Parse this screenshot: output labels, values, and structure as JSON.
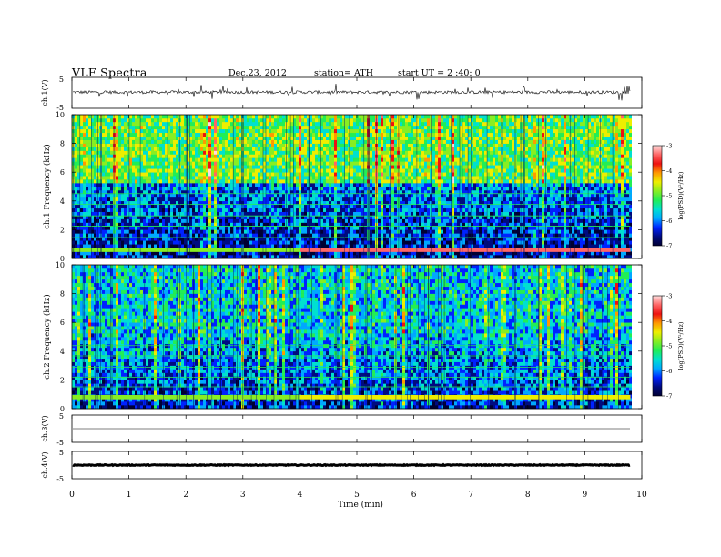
{
  "header": {
    "title": "VLF  Spectra",
    "date": "Dec.23, 2012",
    "station": "station= ATH",
    "start": "start  UT  =  2 :40: 0"
  },
  "colors": {
    "colormap": [
      "#000033",
      "#000b80",
      "#0022ff",
      "#00a8ff",
      "#00e0d0",
      "#22ee55",
      "#88ee22",
      "#eeee00",
      "#ff9900",
      "#ee1111",
      "#ff6666",
      "#ffdddd"
    ]
  },
  "chart_data": {
    "type": "heatmap",
    "x_axis": {
      "label": "Time  (min)",
      "range": [
        0,
        10
      ],
      "ticks": [
        "0",
        "1",
        "2",
        "3",
        "4",
        "5",
        "6",
        "7",
        "8",
        "9",
        "10"
      ]
    },
    "data_end_min": 9.8,
    "panels": [
      {
        "id": "ch1-waveform",
        "type": "line",
        "ylabel": "ch.1(V)",
        "yticks": [
          "5",
          "-5"
        ],
        "ylim": [
          -5,
          5
        ],
        "baseline": 0.2,
        "noise_amplitude": 0.5
      },
      {
        "id": "ch1-spectrogram",
        "type": "heatmap",
        "ylabel": "ch.1  Frequency  (kHz)",
        "yticks": [
          "10",
          "8",
          "6",
          "4",
          "2",
          "0"
        ],
        "ylim": [
          0,
          10
        ],
        "colorbar": {
          "label": "log(PSD)(V²/Hz)",
          "ticks": [
            "-3",
            "-4",
            "-5",
            "-6",
            "-7"
          ],
          "range": [
            -7,
            -3
          ]
        },
        "band_features": {
          "high_band_level": -5.0,
          "low_band_level": -6.5,
          "power_line_band_khz": 0.5,
          "power_line_level_after_min_4": -3.5
        }
      },
      {
        "id": "ch2-spectrogram",
        "type": "heatmap",
        "ylabel": "ch.2  Frequency  (kHz)",
        "yticks": [
          "10",
          "8",
          "6",
          "4",
          "2",
          "0"
        ],
        "ylim": [
          0,
          10
        ],
        "colorbar": {
          "label": "log(PSD)(V²/Hz)",
          "ticks": [
            "-3",
            "-4",
            "-5",
            "-6",
            "-7"
          ],
          "range": [
            -7,
            -3
          ]
        },
        "band_features": {
          "high_band_level": -5.6,
          "low_band_level": -6.3,
          "power_line_band_khz": 0.7,
          "power_line_level_after_min_4": -4.5
        }
      },
      {
        "id": "ch3-waveform",
        "type": "line",
        "ylabel": "ch.3(V)",
        "yticks": [
          "5",
          "-5"
        ],
        "ylim": [
          -5,
          5
        ],
        "baseline": 0.0,
        "noise_amplitude": 0.0
      },
      {
        "id": "ch4-waveform",
        "type": "line",
        "ylabel": "ch.4(V)",
        "yticks": [
          "5",
          "-5"
        ],
        "ylim": [
          -5,
          5
        ],
        "baseline": 0.0,
        "noise_amplitude": 0.15
      }
    ]
  }
}
